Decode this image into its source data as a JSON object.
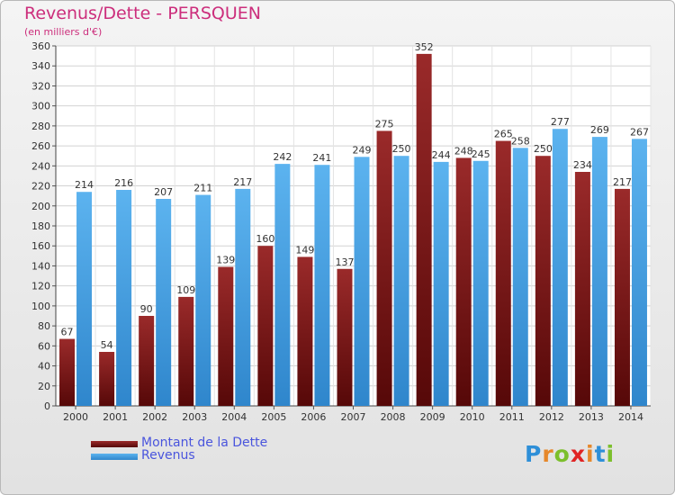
{
  "header": {
    "title": "Revenus/Dette - PERSQUEN",
    "subtitle": "(en milliers d'€)"
  },
  "legend": {
    "items": [
      {
        "label": "Montant de la Dette",
        "color": "#7a1616"
      },
      {
        "label": "Revenus",
        "color": "#4aa3e4"
      }
    ]
  },
  "brand": {
    "letters": [
      "P",
      "r",
      "o",
      "x",
      "i",
      "t",
      "i"
    ],
    "colors": [
      "#2e8fd8",
      "#e6882b",
      "#7cbf2c",
      "#e02424",
      "#e6882b",
      "#2e8fd8",
      "#7cbf2c"
    ]
  },
  "chart_data": {
    "type": "bar",
    "categories": [
      "2000",
      "2001",
      "2002",
      "2003",
      "2004",
      "2005",
      "2006",
      "2007",
      "2008",
      "2009",
      "2010",
      "2011",
      "2012",
      "2013",
      "2014"
    ],
    "series": [
      {
        "name": "Montant de la Dette",
        "values": [
          67,
          54,
          90,
          109,
          139,
          160,
          149,
          137,
          275,
          352,
          248,
          265,
          250,
          234,
          217
        ],
        "color": "#7a1616"
      },
      {
        "name": "Revenus",
        "values": [
          214,
          216,
          207,
          211,
          217,
          242,
          241,
          249,
          250,
          244,
          245,
          258,
          277,
          269,
          267
        ],
        "color": "#4aa3e4"
      }
    ],
    "ylim": [
      0,
      360
    ],
    "yticks": [
      0,
      20,
      40,
      60,
      80,
      100,
      120,
      140,
      160,
      180,
      200,
      220,
      240,
      260,
      280,
      300,
      320,
      340,
      360
    ],
    "grid": true,
    "legend_position": "bottom-left"
  }
}
